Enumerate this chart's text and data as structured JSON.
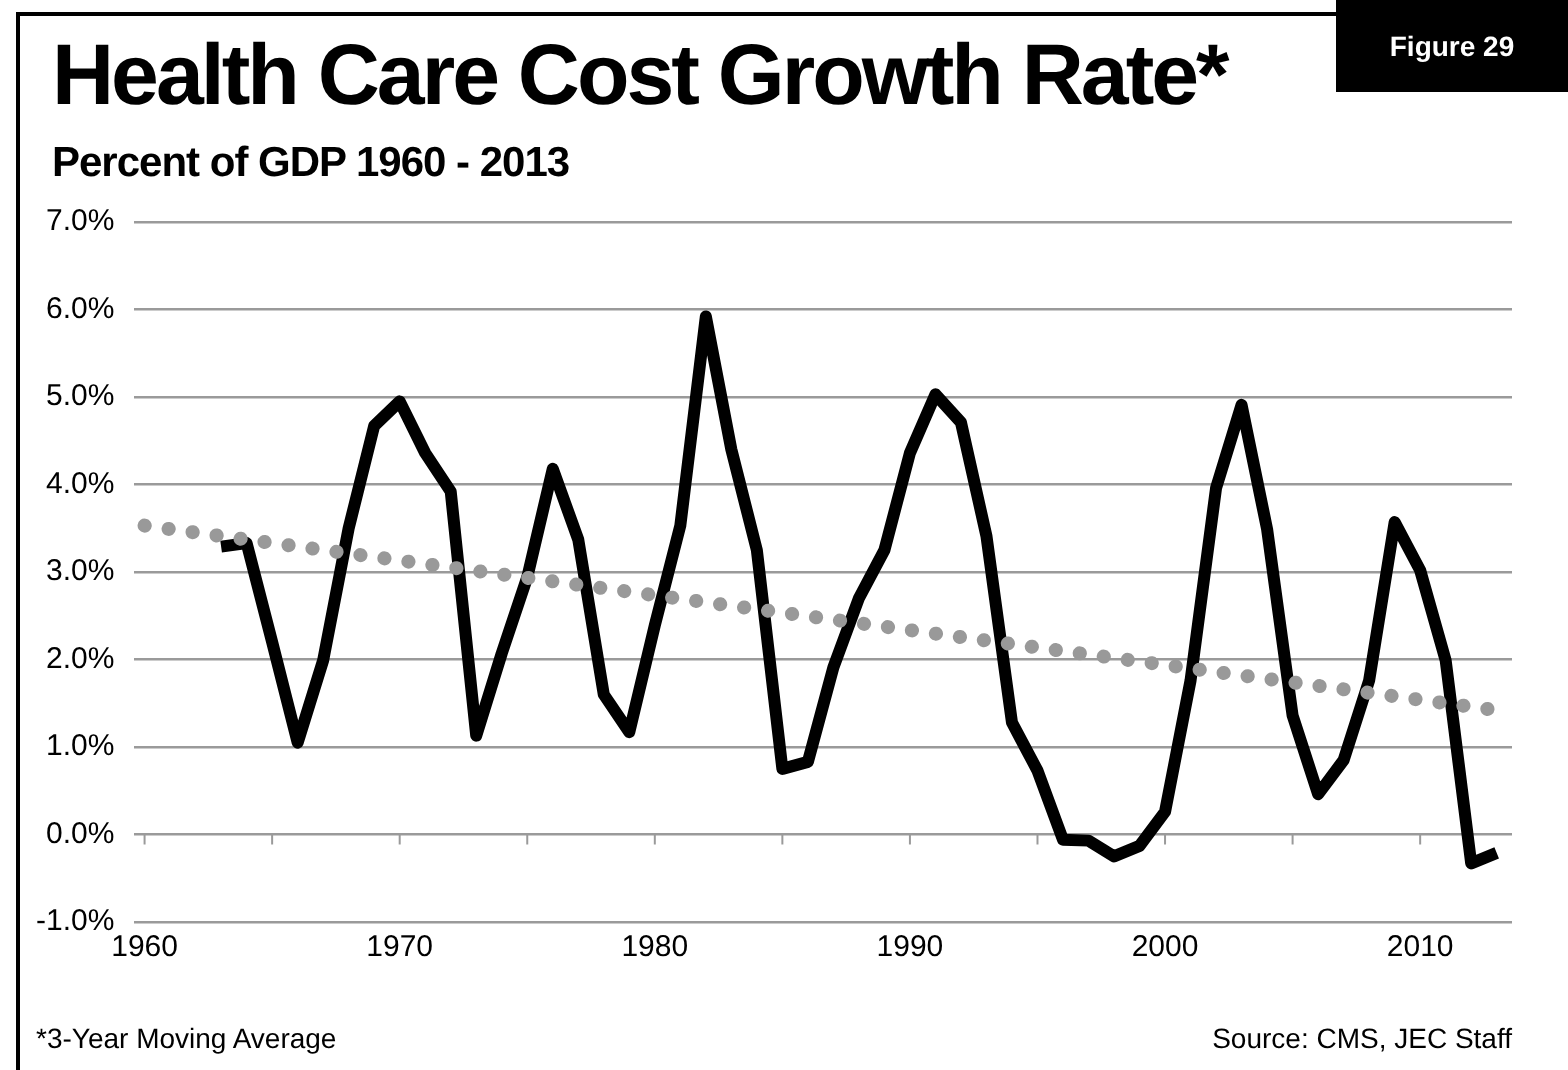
{
  "chart_data": {
    "type": "line",
    "title": "Health Care Cost Growth Rate*",
    "subtitle": "Percent of GDP 1960 - 2013",
    "annotations": [
      "Figure 29",
      "*3-Year Moving Average",
      "Source: CMS, JEC Staff"
    ],
    "x": [
      1963,
      1964,
      1965,
      1966,
      1967,
      1968,
      1969,
      1970,
      1971,
      1972,
      1973,
      1974,
      1975,
      1976,
      1977,
      1978,
      1979,
      1980,
      1981,
      1982,
      1983,
      1984,
      1985,
      1986,
      1987,
      1988,
      1989,
      1990,
      1991,
      1992,
      1993,
      1994,
      1995,
      1996,
      1997,
      1998,
      1999,
      2000,
      2001,
      2002,
      2003,
      2004,
      2005,
      2006,
      2007,
      2008,
      2009,
      2010,
      2011,
      2012,
      2013
    ],
    "series": [
      {
        "color": "#000000",
        "values": [
          3.29,
          3.33,
          2.2,
          1.05,
          1.99,
          3.5,
          4.67,
          4.95,
          4.36,
          3.92,
          1.13,
          2.07,
          2.94,
          4.18,
          3.37,
          1.6,
          1.17,
          2.39,
          3.53,
          5.92,
          4.4,
          3.25,
          0.75,
          0.83,
          1.91,
          2.7,
          3.25,
          4.36,
          5.03,
          4.71,
          3.41,
          1.28,
          0.73,
          -0.06,
          -0.07,
          -0.25,
          -0.13,
          0.26,
          1.76,
          3.96,
          4.91,
          3.49,
          1.36,
          0.46,
          0.85,
          1.76,
          3.57,
          3.02,
          1.99,
          -0.33,
          -0.21
        ]
      },
      {
        "type": "line",
        "x": [
          1960,
          2013
        ],
        "color": "#999999",
        "line_style": "dotted",
        "values": [
          3.53,
          1.42
        ]
      }
    ],
    "xlim": [
      1959.6,
      2013.6
    ],
    "xticks": [
      1960,
      {
        "value": 1965,
        "label": null
      },
      1970,
      {
        "value": 1975,
        "label": null
      },
      1980,
      {
        "value": 1985,
        "label": null
      },
      1990,
      {
        "value": 1995,
        "label": null
      },
      2000,
      {
        "value": 2005,
        "label": null
      },
      2010
    ],
    "ylim": [
      -1,
      7
    ],
    "yticks": [
      {
        "value": -1,
        "label": "-1.0%"
      },
      {
        "value": 0,
        "label": "0.0%"
      },
      {
        "value": 1,
        "label": "1.0%"
      },
      {
        "value": 2,
        "label": "2.0%"
      },
      {
        "value": 3,
        "label": "3.0%"
      },
      {
        "value": 4,
        "label": "4.0%"
      },
      {
        "value": 5,
        "label": "5.0%"
      },
      {
        "value": 6,
        "label": "6.0%"
      },
      {
        "value": 7,
        "label": "7.0%"
      }
    ],
    "grid": "y",
    "marker": "none",
    "line_style": "solid",
    "legend": false
  }
}
